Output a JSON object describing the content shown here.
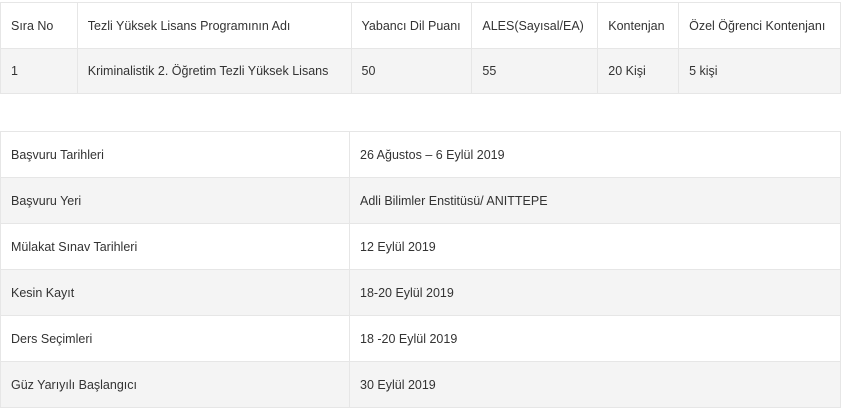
{
  "program_table": {
    "headers": [
      "Sıra No",
      "Tezli Yüksek Lisans Programının Adı",
      "Yabancı Dil Puanı",
      "ALES(Sayısal/EA)",
      "Kontenjan",
      "Özel Öğrenci Kontenjanı"
    ],
    "rows": [
      [
        "1",
        "Kriminalistik 2. Öğretim Tezli Yüksek Lisans",
        "50",
        "55",
        "20 Kişi",
        "5 kişi"
      ]
    ]
  },
  "schedule_table": {
    "rows": [
      {
        "label": "Başvuru Tarihleri",
        "value": "26 Ağustos – 6 Eylül 2019"
      },
      {
        "label": "Başvuru Yeri",
        "value": "Adli Bilimler Enstitüsü/ ANITTEPE"
      },
      {
        "label": "Mülakat Sınav Tarihleri",
        "value": "12 Eylül 2019"
      },
      {
        "label": "Kesin Kayıt",
        "value": "18-20 Eylül 2019"
      },
      {
        "label": "Ders Seçimleri",
        "value": "18 -20 Eylül 2019"
      },
      {
        "label": "Güz Yarıyılı Başlangıcı",
        "value": "30 Eylül 2019"
      }
    ]
  }
}
